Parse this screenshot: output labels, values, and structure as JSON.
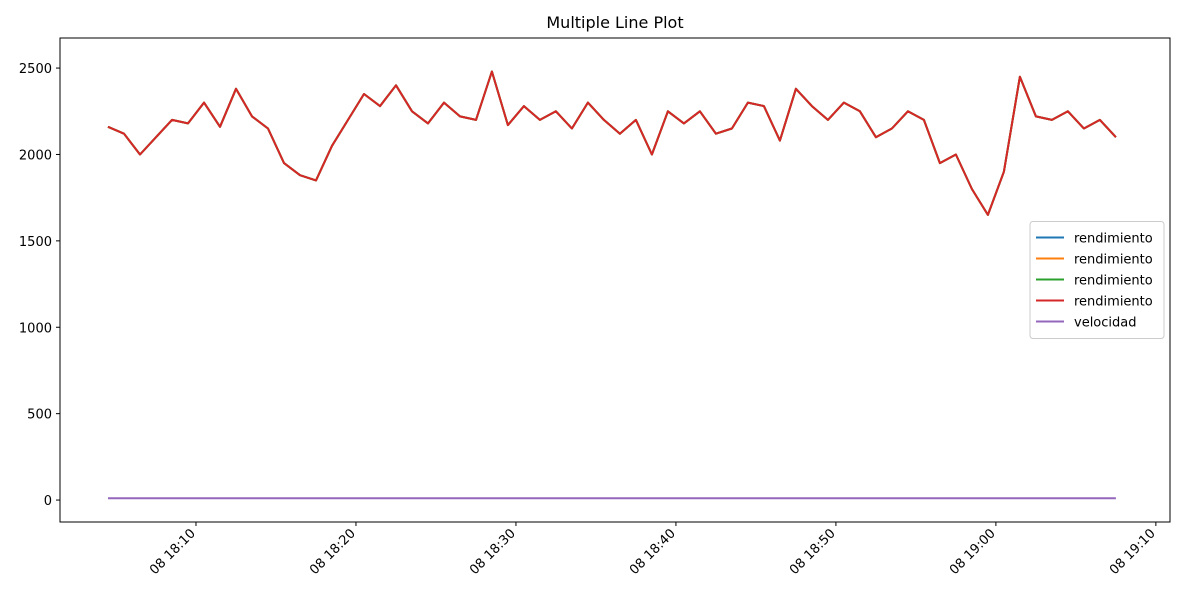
{
  "chart_data": {
    "type": "line",
    "title": "Multiple Line Plot",
    "x": [
      "08 18:04:30",
      "08 18:05:30",
      "08 18:06:30",
      "08 18:07:30",
      "08 18:08:30",
      "08 18:09:30",
      "08 18:10:30",
      "08 18:11:30",
      "08 18:12:30",
      "08 18:13:30",
      "08 18:14:30",
      "08 18:15:30",
      "08 18:16:30",
      "08 18:17:30",
      "08 18:18:30",
      "08 18:19:30",
      "08 18:20:30",
      "08 18:21:30",
      "08 18:22:30",
      "08 18:23:30",
      "08 18:24:30",
      "08 18:25:30",
      "08 18:26:30",
      "08 18:27:30",
      "08 18:28:30",
      "08 18:29:30",
      "08 18:30:30",
      "08 18:31:30",
      "08 18:32:30",
      "08 18:33:30",
      "08 18:34:30",
      "08 18:35:30",
      "08 18:36:30",
      "08 18:37:30",
      "08 18:38:30",
      "08 18:39:30",
      "08 18:40:30",
      "08 18:41:30",
      "08 18:42:30",
      "08 18:43:30",
      "08 18:44:30",
      "08 18:45:30",
      "08 18:46:30",
      "08 18:47:30",
      "08 18:48:30",
      "08 18:49:30",
      "08 18:50:30",
      "08 18:51:30",
      "08 18:52:30",
      "08 18:53:30",
      "08 18:54:30",
      "08 18:55:30",
      "08 18:56:30",
      "08 18:57:30",
      "08 18:58:30",
      "08 18:59:30",
      "08 19:00:30",
      "08 19:01:30",
      "08 19:02:30",
      "08 19:03:30",
      "08 19:04:30",
      "08 19:05:30",
      "08 19:06:30",
      "08 19:07:30"
    ],
    "series": [
      {
        "name": "rendimiento",
        "color": "#1f77b4",
        "values": [
          2160,
          2120,
          2000,
          2100,
          2200,
          2180,
          2300,
          2160,
          2380,
          2220,
          2150,
          1950,
          1880,
          1850,
          2050,
          2200,
          2350,
          2280,
          2400,
          2250,
          2180,
          2300,
          2220,
          2200,
          2480,
          2170,
          2280,
          2200,
          2250,
          2150,
          2300,
          2200,
          2120,
          2200,
          2000,
          2250,
          2180,
          2250,
          2120,
          2150,
          2300,
          2280,
          2080,
          2380,
          2280,
          2200,
          2300,
          2250,
          2100,
          2150,
          2250,
          2200,
          1950,
          2000,
          1800,
          1650,
          1900,
          2450,
          2220,
          2200,
          2250,
          2150,
          2200,
          2100
        ]
      },
      {
        "name": "rendimiento",
        "color": "#ff7f0e",
        "values": [
          2160,
          2120,
          2000,
          2100,
          2200,
          2180,
          2300,
          2160,
          2380,
          2220,
          2150,
          1950,
          1880,
          1850,
          2050,
          2200,
          2350,
          2280,
          2400,
          2250,
          2180,
          2300,
          2220,
          2200,
          2480,
          2170,
          2280,
          2200,
          2250,
          2150,
          2300,
          2200,
          2120,
          2200,
          2000,
          2250,
          2180,
          2250,
          2120,
          2150,
          2300,
          2280,
          2080,
          2380,
          2280,
          2200,
          2300,
          2250,
          2100,
          2150,
          2250,
          2200,
          1950,
          2000,
          1800,
          1650,
          1900,
          2450,
          2220,
          2200,
          2250,
          2150,
          2200,
          2100
        ]
      },
      {
        "name": "rendimiento",
        "color": "#2ca02c",
        "values": [
          2160,
          2120,
          2000,
          2100,
          2200,
          2180,
          2300,
          2160,
          2380,
          2220,
          2150,
          1950,
          1880,
          1850,
          2050,
          2200,
          2350,
          2280,
          2400,
          2250,
          2180,
          2300,
          2220,
          2200,
          2480,
          2170,
          2280,
          2200,
          2250,
          2150,
          2300,
          2200,
          2120,
          2200,
          2000,
          2250,
          2180,
          2250,
          2120,
          2150,
          2300,
          2280,
          2080,
          2380,
          2280,
          2200,
          2300,
          2250,
          2100,
          2150,
          2250,
          2200,
          1950,
          2000,
          1800,
          1650,
          1900,
          2450,
          2220,
          2200,
          2250,
          2150,
          2200,
          2100
        ]
      },
      {
        "name": "rendimiento",
        "color": "#d62728",
        "values": [
          2160,
          2120,
          2000,
          2100,
          2200,
          2180,
          2300,
          2160,
          2380,
          2220,
          2150,
          1950,
          1880,
          1850,
          2050,
          2200,
          2350,
          2280,
          2400,
          2250,
          2180,
          2300,
          2220,
          2200,
          2480,
          2170,
          2280,
          2200,
          2250,
          2150,
          2300,
          2200,
          2120,
          2200,
          2000,
          2250,
          2180,
          2250,
          2120,
          2150,
          2300,
          2280,
          2080,
          2380,
          2280,
          2200,
          2300,
          2250,
          2100,
          2150,
          2250,
          2200,
          1950,
          2000,
          1800,
          1650,
          1900,
          2450,
          2220,
          2200,
          2250,
          2150,
          2200,
          2100
        ]
      },
      {
        "name": "velocidad",
        "color": "#9467bd",
        "values": [
          10,
          10,
          10,
          10,
          10,
          10,
          10,
          10,
          10,
          10,
          10,
          10,
          10,
          10,
          10,
          10,
          10,
          10,
          10,
          10,
          10,
          10,
          10,
          10,
          10,
          10,
          10,
          10,
          10,
          10,
          10,
          10,
          10,
          10,
          10,
          10,
          10,
          10,
          10,
          10,
          10,
          10,
          10,
          10,
          10,
          10,
          10,
          10,
          10,
          10,
          10,
          10,
          10,
          10,
          10,
          10,
          10,
          10,
          10,
          10,
          10,
          10,
          10,
          10
        ]
      }
    ],
    "xlim": [
      "08 18:01:30",
      "08 19:10:53"
    ],
    "xticks": [
      "08 18:10",
      "08 18:20",
      "08 18:30",
      "08 18:40",
      "08 18:50",
      "08 19:00",
      "08 19:10"
    ],
    "ylim": [
      -127,
      2674
    ],
    "yticks": [
      0,
      500,
      1000,
      1500,
      2000,
      2500
    ],
    "legend": "center right",
    "grid": false
  }
}
